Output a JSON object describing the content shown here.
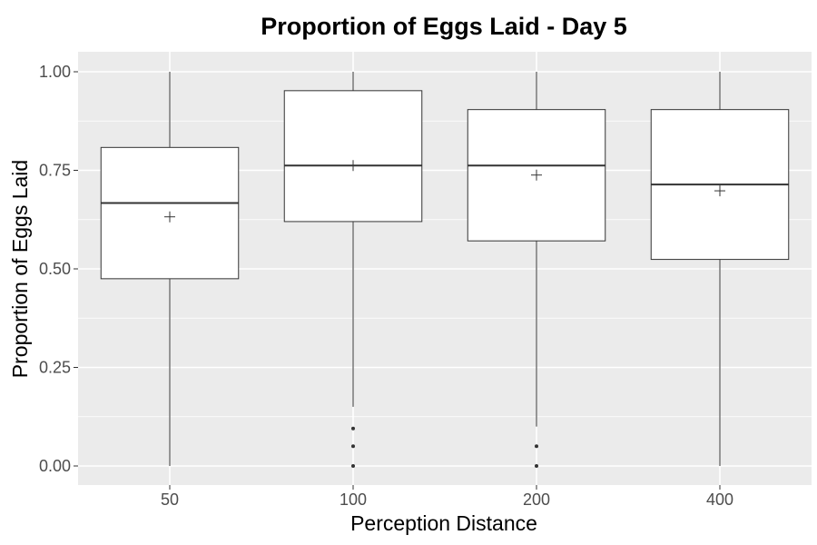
{
  "chart_data": {
    "type": "boxplot",
    "title": "Proportion of Eggs Laid - Day 5",
    "xlabel": "Perception Distance",
    "ylabel": "Proportion of Eggs Laid",
    "ylim": [
      -0.04,
      1.04
    ],
    "y_ticks": [
      "0.00",
      "0.25",
      "0.50",
      "0.75",
      "1.00"
    ],
    "y_tick_values": [
      0.0,
      0.25,
      0.5,
      0.75,
      1.0
    ],
    "categories": [
      "50",
      "100",
      "200",
      "400"
    ],
    "boxes": [
      {
        "category": "50",
        "lower_whisker": 0.0,
        "q1": 0.475,
        "median": 0.667,
        "q3": 0.808,
        "upper_whisker": 1.0,
        "mean": 0.632,
        "outliers": []
      },
      {
        "category": "100",
        "lower_whisker": 0.15,
        "q1": 0.62,
        "median": 0.762,
        "q3": 0.952,
        "upper_whisker": 1.0,
        "mean": 0.762,
        "outliers": [
          0.0,
          0.05,
          0.095
        ]
      },
      {
        "category": "200",
        "lower_whisker": 0.1,
        "q1": 0.571,
        "median": 0.762,
        "q3": 0.904,
        "upper_whisker": 1.0,
        "mean": 0.738,
        "outliers": [
          0.0,
          0.05
        ]
      },
      {
        "category": "400",
        "lower_whisker": 0.0,
        "q1": 0.524,
        "median": 0.714,
        "q3": 0.904,
        "upper_whisker": 1.0,
        "mean": 0.698,
        "outliers": []
      }
    ],
    "mean_marker": "plus",
    "grid": true,
    "colors": {
      "panel_background": "#ebebeb",
      "grid": "#ffffff",
      "box_fill": "#ffffff",
      "box_line": "#333333"
    }
  }
}
